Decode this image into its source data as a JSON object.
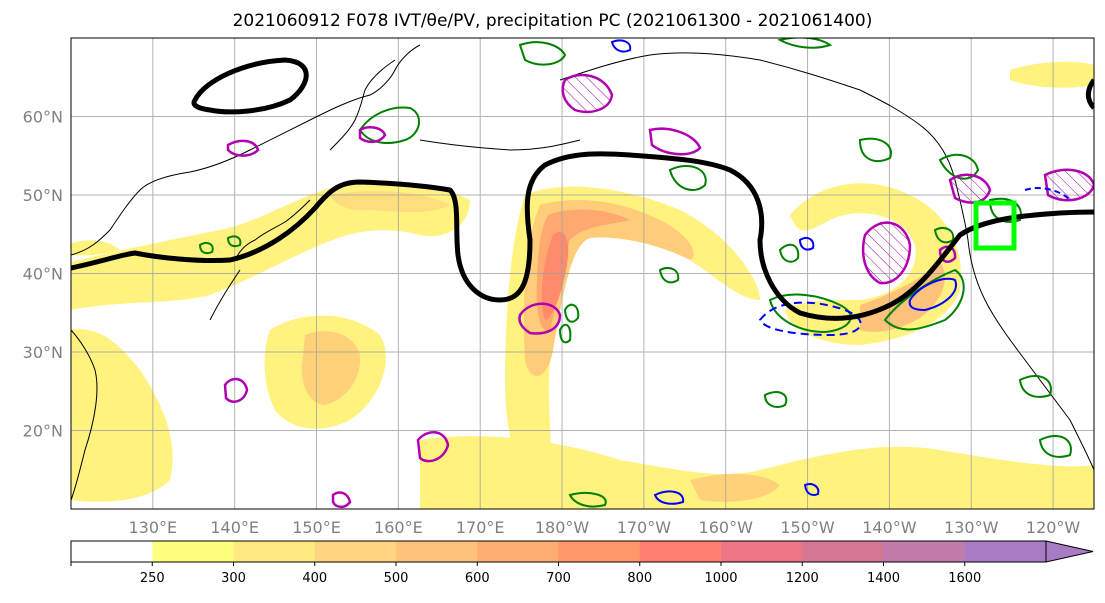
{
  "figure": {
    "title": "2021060912 F078 IVT/θe/PV, precipitation PC (2021061300 - 2021061400)"
  },
  "map": {
    "lon_range": [
      120,
      245
    ],
    "lat_range": [
      10,
      70
    ],
    "lat_ticks": [
      {
        "lat": 20,
        "label": "20°N"
      },
      {
        "lat": 30,
        "label": "30°N"
      },
      {
        "lat": 40,
        "label": "40°N"
      },
      {
        "lat": 50,
        "label": "50°N"
      },
      {
        "lat": 60,
        "label": "60°N"
      }
    ],
    "lon_ticks": [
      {
        "lon": 130,
        "label": "130°E"
      },
      {
        "lon": 140,
        "label": "140°E"
      },
      {
        "lon": 150,
        "label": "150°E"
      },
      {
        "lon": 160,
        "label": "160°E"
      },
      {
        "lon": 170,
        "label": "170°E"
      },
      {
        "lon": 180,
        "label": "180°W"
      },
      {
        "lon": 190,
        "label": "170°W"
      },
      {
        "lon": 200,
        "label": "160°W"
      },
      {
        "lon": 210,
        "label": "150°W"
      },
      {
        "lon": 220,
        "label": "140°W"
      },
      {
        "lon": 230,
        "label": "130°W"
      },
      {
        "lon": 240,
        "label": "120°W"
      }
    ],
    "gridlines": true,
    "colors": {
      "ivt_250": "#ffff80",
      "ivt_300": "#ffe680",
      "ivt_400": "#ffd27a",
      "ivt_500": "#ffbd75",
      "ivt_600": "#ffa870",
      "ivt_700": "#ff9468",
      "ivt_800": "#ff8070",
      "jet_contour": "#000000",
      "theta_e": "#008000",
      "pv": "#b000b0",
      "precip": "#0000ff",
      "target_box": "#00ff00"
    },
    "target_box": {
      "lon_range": [
        232,
        237
      ],
      "lat_range": [
        43,
        49
      ]
    }
  },
  "colorbar": {
    "levels": [
      {
        "label": "",
        "color": "#ffffff"
      },
      {
        "label": "250",
        "color": "#ffff80"
      },
      {
        "label": "300",
        "color": "#ffea80"
      },
      {
        "label": "400",
        "color": "#ffd580"
      },
      {
        "label": "500",
        "color": "#ffc27a"
      },
      {
        "label": "600",
        "color": "#ffad72"
      },
      {
        "label": "700",
        "color": "#ff976b"
      },
      {
        "label": "800",
        "color": "#ff8070"
      },
      {
        "label": "1000",
        "color": "#ec7684"
      },
      {
        "label": "1200",
        "color": "#d67694"
      },
      {
        "label": "1400",
        "color": "#c07aac"
      },
      {
        "label": "1600",
        "color": "#a87cc4"
      }
    ]
  }
}
